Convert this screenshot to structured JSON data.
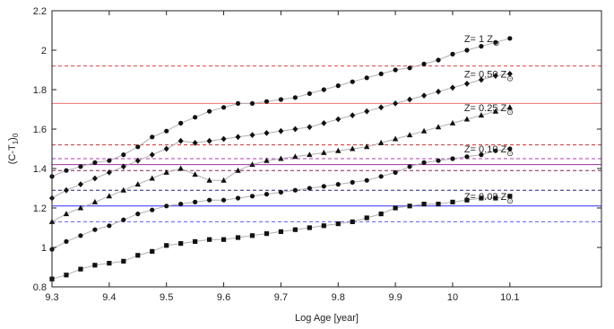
{
  "chart_data": {
    "type": "line",
    "xlabel": "Log Age [year]",
    "ylabel": "(C-T",
    "ylabel_sub": "1",
    "ylabel_tail": ")",
    "ylabel_sub2": "0",
    "xlim": [
      9.3,
      10.26
    ],
    "ylim": [
      0.8,
      2.2
    ],
    "xticks": [
      9.3,
      9.4,
      9.5,
      9.6,
      9.7,
      9.8,
      9.9,
      10,
      10.1
    ],
    "xtick_labels": [
      "9.3",
      "9.4",
      "9.5",
      "9.6",
      "9.7",
      "9.8",
      "9.9",
      "10",
      "10.1"
    ],
    "yticks": [
      0.8,
      1,
      1.2,
      1.4,
      1.6,
      1.8,
      2,
      2.2
    ],
    "ytick_labels": [
      "0.8",
      "1",
      "1.2",
      "1.4",
      "1.6",
      "1.8",
      "2",
      "2.2"
    ],
    "series": [
      {
        "label_text": "Z= 1 Z",
        "marker": "circle",
        "x": [
          9.3,
          9.325,
          9.35,
          9.375,
          9.4,
          9.425,
          9.45,
          9.475,
          9.5,
          9.525,
          9.55,
          9.575,
          9.6,
          9.625,
          9.65,
          9.675,
          9.7,
          9.725,
          9.75,
          9.775,
          9.8,
          9.825,
          9.85,
          9.875,
          9.9,
          9.925,
          9.95,
          9.975,
          10.0,
          10.025,
          10.05,
          10.075,
          10.1
        ],
        "values": [
          1.36,
          1.39,
          1.41,
          1.43,
          1.44,
          1.47,
          1.51,
          1.56,
          1.59,
          1.63,
          1.66,
          1.69,
          1.71,
          1.73,
          1.73,
          1.74,
          1.75,
          1.76,
          1.78,
          1.8,
          1.82,
          1.84,
          1.86,
          1.88,
          1.9,
          1.91,
          1.93,
          1.95,
          1.98,
          2.0,
          2.02,
          2.04,
          2.06
        ]
      },
      {
        "label_text": "Z= 0.50 Z",
        "marker": "diamond",
        "x": [
          9.3,
          9.325,
          9.35,
          9.375,
          9.4,
          9.425,
          9.45,
          9.475,
          9.5,
          9.525,
          9.55,
          9.575,
          9.6,
          9.625,
          9.65,
          9.675,
          9.7,
          9.725,
          9.75,
          9.775,
          9.8,
          9.825,
          9.85,
          9.875,
          9.9,
          9.925,
          9.95,
          9.975,
          10.0,
          10.025,
          10.05,
          10.075,
          10.1
        ],
        "values": [
          1.25,
          1.29,
          1.32,
          1.35,
          1.38,
          1.41,
          1.44,
          1.47,
          1.5,
          1.54,
          1.53,
          1.54,
          1.55,
          1.56,
          1.57,
          1.58,
          1.59,
          1.6,
          1.61,
          1.63,
          1.65,
          1.67,
          1.69,
          1.71,
          1.73,
          1.75,
          1.77,
          1.79,
          1.81,
          1.83,
          1.85,
          1.87,
          1.88
        ]
      },
      {
        "label_text": "Z= 0.25 Z",
        "marker": "triangle",
        "x": [
          9.3,
          9.325,
          9.35,
          9.375,
          9.4,
          9.425,
          9.45,
          9.475,
          9.5,
          9.525,
          9.55,
          9.575,
          9.6,
          9.625,
          9.65,
          9.675,
          9.7,
          9.725,
          9.75,
          9.775,
          9.8,
          9.825,
          9.85,
          9.875,
          9.9,
          9.925,
          9.95,
          9.975,
          10.0,
          10.025,
          10.05,
          10.075,
          10.1
        ],
        "values": [
          1.13,
          1.17,
          1.2,
          1.23,
          1.26,
          1.29,
          1.32,
          1.35,
          1.38,
          1.4,
          1.37,
          1.34,
          1.34,
          1.39,
          1.42,
          1.44,
          1.45,
          1.46,
          1.47,
          1.48,
          1.49,
          1.5,
          1.51,
          1.53,
          1.55,
          1.57,
          1.59,
          1.61,
          1.63,
          1.65,
          1.67,
          1.69,
          1.71
        ]
      },
      {
        "label_text": "Z= 0.10 Z",
        "marker": "circle",
        "x": [
          9.3,
          9.325,
          9.35,
          9.375,
          9.4,
          9.425,
          9.45,
          9.475,
          9.5,
          9.525,
          9.55,
          9.575,
          9.6,
          9.625,
          9.65,
          9.675,
          9.7,
          9.725,
          9.75,
          9.775,
          9.8,
          9.825,
          9.85,
          9.875,
          9.9,
          9.925,
          9.95,
          9.975,
          10.0,
          10.025,
          10.05,
          10.075,
          10.1
        ],
        "values": [
          0.99,
          1.03,
          1.06,
          1.09,
          1.11,
          1.14,
          1.17,
          1.19,
          1.21,
          1.22,
          1.23,
          1.24,
          1.24,
          1.25,
          1.26,
          1.27,
          1.28,
          1.29,
          1.3,
          1.31,
          1.32,
          1.33,
          1.34,
          1.36,
          1.38,
          1.41,
          1.43,
          1.44,
          1.45,
          1.46,
          1.47,
          1.49,
          1.5
        ]
      },
      {
        "label_text": "Z= 0.03 Z",
        "marker": "square",
        "x": [
          9.3,
          9.325,
          9.35,
          9.375,
          9.4,
          9.425,
          9.45,
          9.475,
          9.5,
          9.525,
          9.55,
          9.575,
          9.6,
          9.625,
          9.65,
          9.675,
          9.7,
          9.725,
          9.75,
          9.775,
          9.8,
          9.825,
          9.85,
          9.875,
          9.9,
          9.925,
          9.95,
          9.975,
          10.0,
          10.025,
          10.05,
          10.075,
          10.1
        ],
        "values": [
          0.84,
          0.86,
          0.89,
          0.91,
          0.92,
          0.93,
          0.96,
          0.98,
          1.01,
          1.02,
          1.03,
          1.04,
          1.04,
          1.05,
          1.06,
          1.07,
          1.08,
          1.09,
          1.1,
          1.11,
          1.12,
          1.13,
          1.15,
          1.17,
          1.2,
          1.21,
          1.22,
          1.22,
          1.23,
          1.24,
          1.25,
          1.25,
          1.26
        ]
      }
    ],
    "reference_lines": [
      {
        "y": 1.92,
        "color": "#e04040",
        "style": "dashed"
      },
      {
        "y": 1.73,
        "color": "#f07070",
        "style": "solid"
      },
      {
        "y": 1.52,
        "color": "#d03030",
        "style": "dashed"
      },
      {
        "y": 1.45,
        "color": "#b03cb0",
        "style": "dashed"
      },
      {
        "y": 1.42,
        "color": "#a030a0",
        "style": "solid"
      },
      {
        "y": 1.39,
        "color": "#8a2060",
        "style": "dashed"
      },
      {
        "y": 1.29,
        "color": "#202080",
        "style": "dashed"
      },
      {
        "y": 1.21,
        "color": "#3030ff",
        "style": "solid"
      },
      {
        "y": 1.13,
        "color": "#5a5aff",
        "style": "dashed"
      }
    ],
    "line_color": "#b0b0b0",
    "marker_color": "#111111",
    "grid": false,
    "sun_symbol": "⊙"
  }
}
